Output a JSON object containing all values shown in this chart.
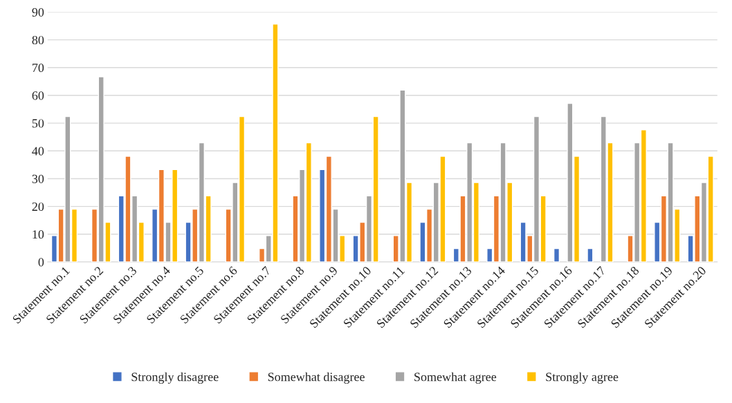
{
  "chart_data": {
    "type": "bar",
    "categories": [
      "Statement no.1",
      "Statement no.2",
      "Statement no.3",
      "Statement no.4",
      "Statement no.5",
      "Statement no.6",
      "Statement no.7",
      "Statement no.8",
      "Statement no.9",
      "Statement no.10",
      "Statement no.11",
      "Statement no.12",
      "Statement no.13",
      "Statement no.14",
      "Statement no.15",
      "Statement no.16",
      "Statement no.17",
      "Statement no.18",
      "Statement no.19",
      "Statement no.20"
    ],
    "series": [
      {
        "name": "Strongly disagree",
        "color": "#4472c4",
        "values": [
          9.5,
          null,
          23.8,
          19,
          14.3,
          null,
          null,
          null,
          33.3,
          9.5,
          null,
          14.3,
          4.8,
          4.8,
          14.3,
          4.8,
          4.8,
          null,
          14.3,
          9.5
        ]
      },
      {
        "name": "Somewhat disagree",
        "color": "#ed7d31",
        "values": [
          19,
          19,
          38.1,
          33.3,
          19,
          19,
          4.8,
          23.8,
          38.1,
          14.3,
          9.5,
          19,
          23.8,
          23.8,
          9.5,
          null,
          null,
          9.5,
          23.8,
          23.8
        ]
      },
      {
        "name": "Somewhat agree",
        "color": "#a5a5a5",
        "values": [
          52.4,
          66.7,
          23.8,
          14.3,
          42.9,
          28.6,
          9.5,
          33.3,
          19,
          23.8,
          61.9,
          28.6,
          42.9,
          42.9,
          52.4,
          57.1,
          52.4,
          42.9,
          42.9,
          28.6
        ]
      },
      {
        "name": "Strongly agree",
        "color": "#ffc000",
        "values": [
          19,
          14.3,
          14.3,
          33.3,
          23.8,
          52.4,
          85.7,
          42.9,
          9.5,
          52.4,
          28.6,
          38.1,
          28.6,
          28.6,
          23.8,
          38.1,
          42.9,
          47.6,
          19,
          38.1
        ]
      }
    ],
    "ylim": [
      0,
      90
    ],
    "yticks": [
      0,
      10,
      20,
      30,
      40,
      50,
      60,
      70,
      80,
      90
    ],
    "grid": "y",
    "legend": "bottom"
  }
}
